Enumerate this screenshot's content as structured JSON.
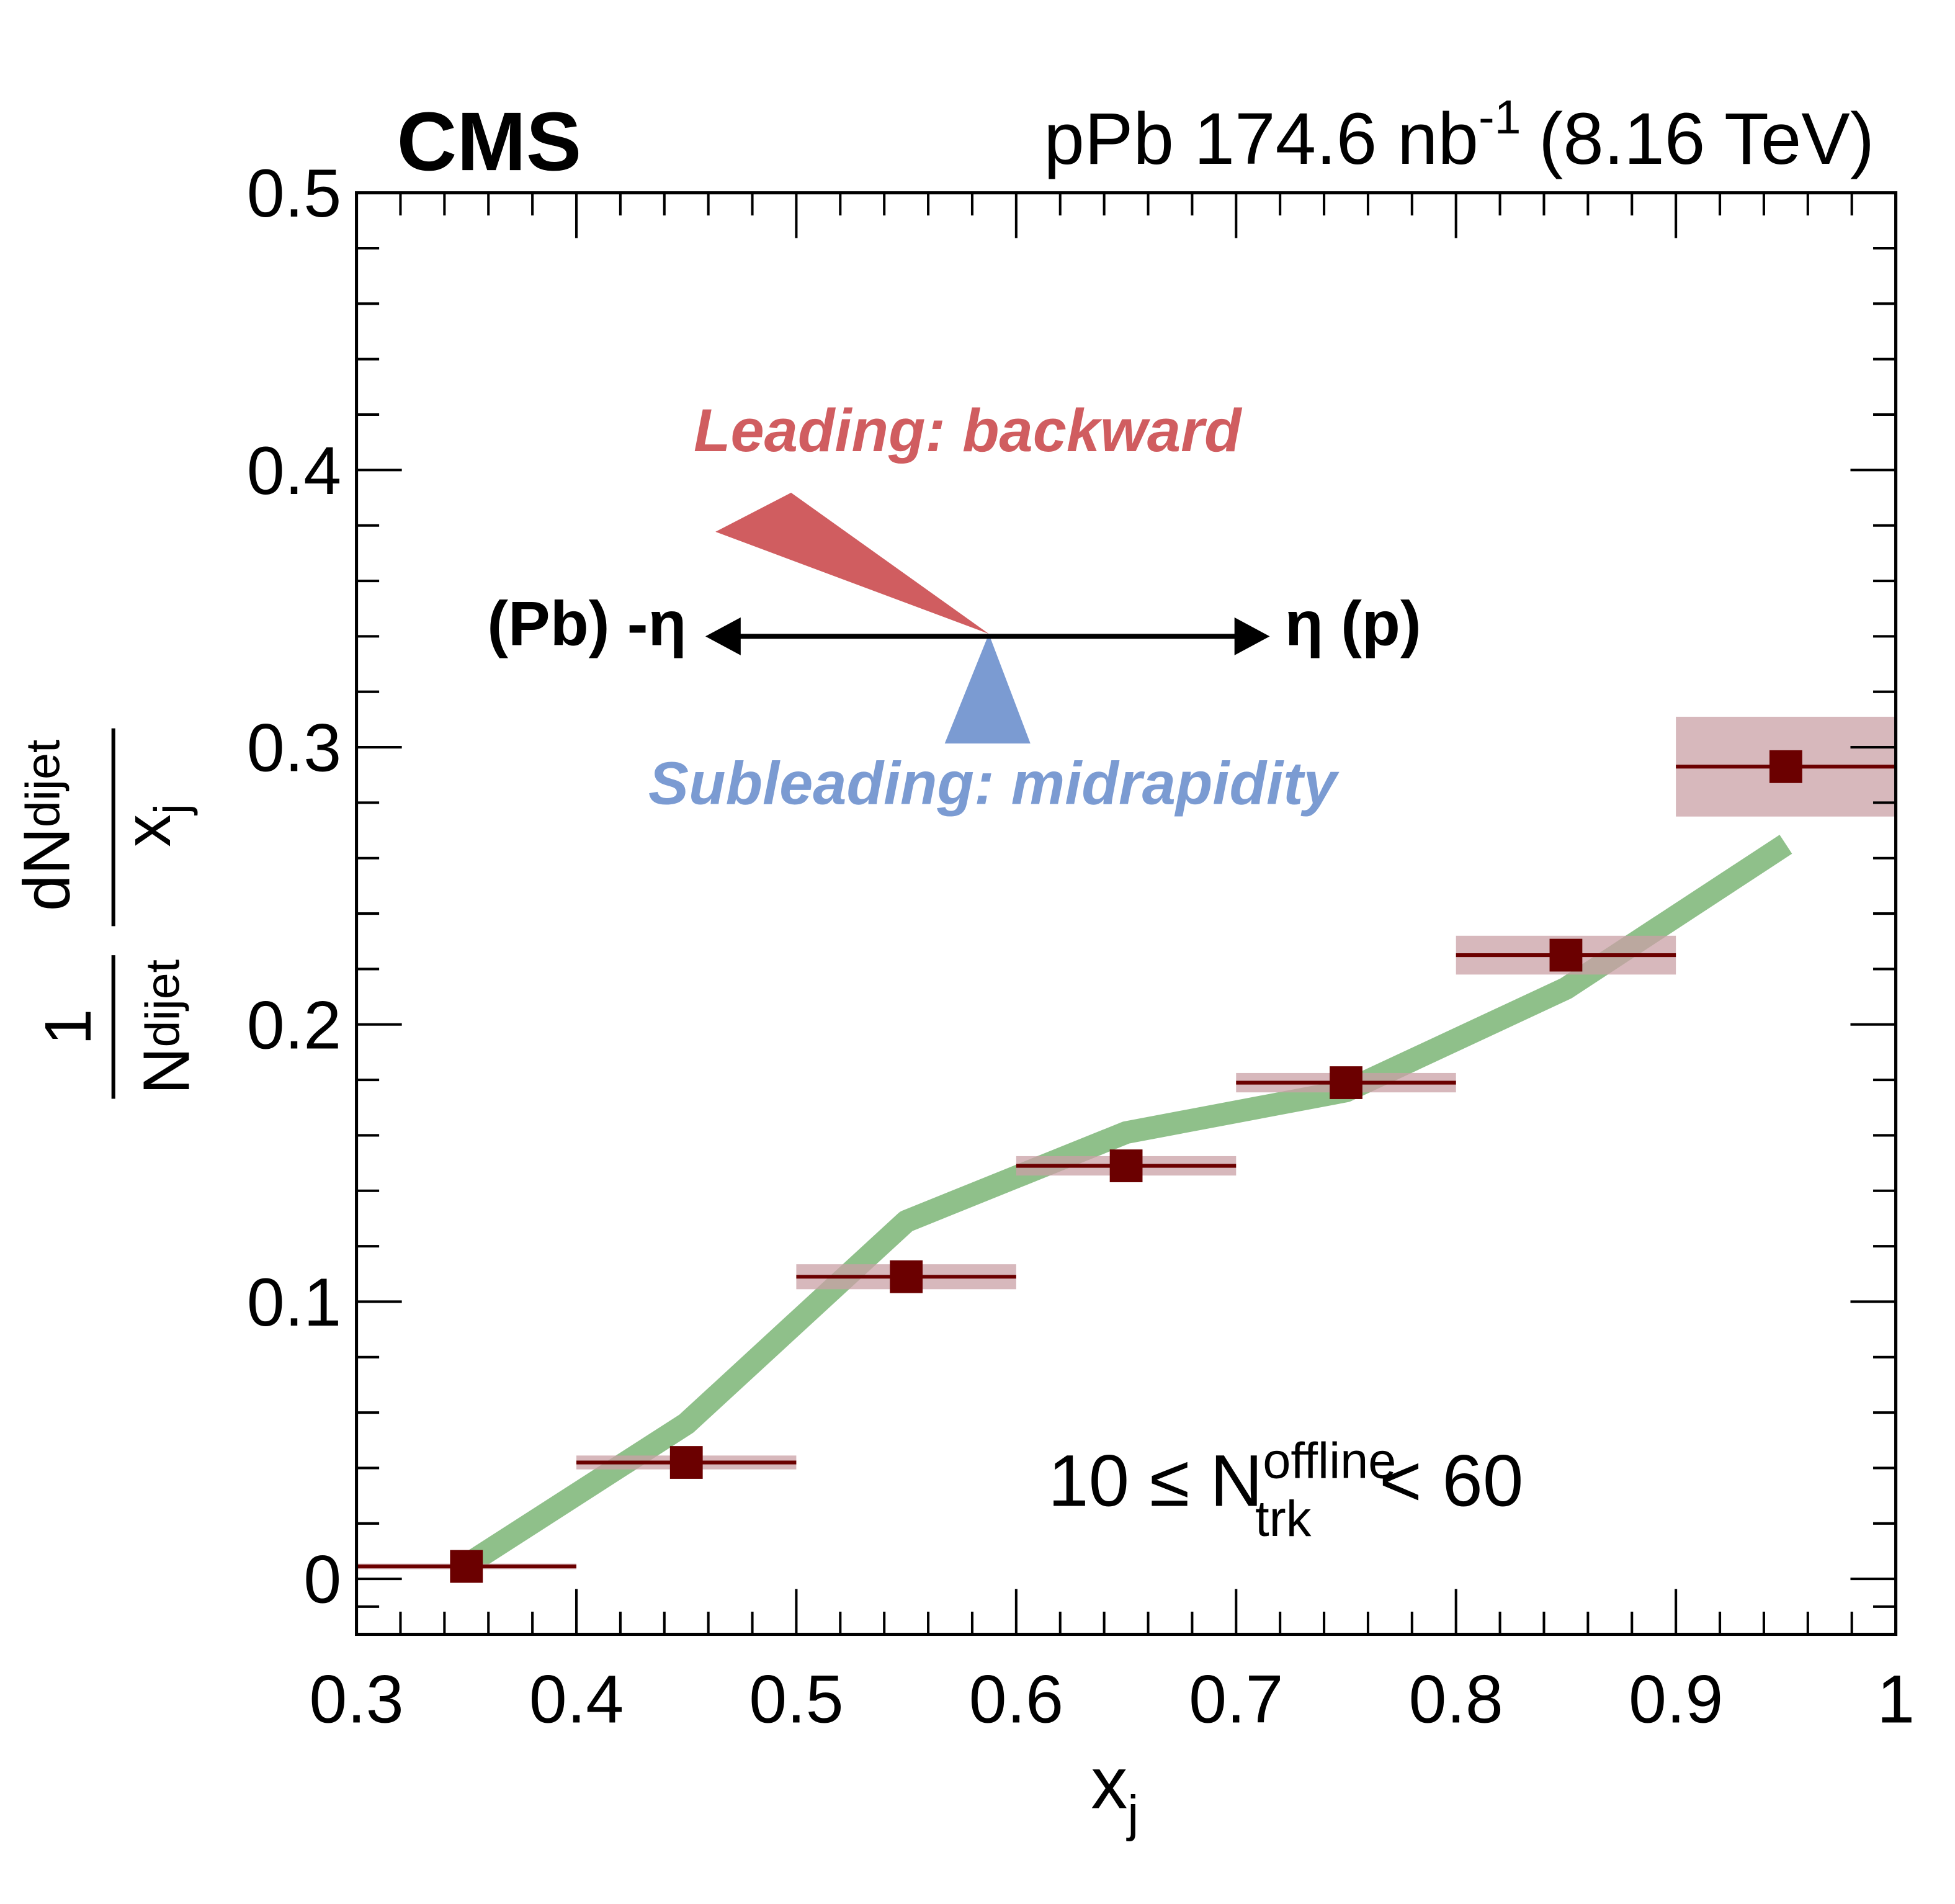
{
  "chart_data": {
    "type": "binned",
    "experiment": "CMS",
    "header": {
      "text": "pPb 174.6 nb",
      "sup": "-1",
      "energy": "(8.16 TeV)"
    },
    "xlabel": {
      "main": "x",
      "sub": "j"
    },
    "ylabel": {
      "num1": "1",
      "den1": "N",
      "den1_sub": "dijet",
      "num2": "dN",
      "num2_sub": "dijet",
      "den2": "x",
      "den2_sub": "j"
    },
    "selection": {
      "pre": "10 ≤ N",
      "sup": "offline",
      "sub": "trk",
      "post": "< 60"
    },
    "diagram": {
      "leading": "Leading: backward",
      "subleading": "Subleading: midrapidity",
      "left": "(Pb) -η",
      "right": "η (p)"
    },
    "bins": [
      0.3,
      0.4,
      0.5,
      0.6,
      0.7,
      0.8,
      0.9,
      1.0
    ],
    "data": {
      "values": [
        0.0045,
        0.042,
        0.109,
        0.149,
        0.179,
        0.225,
        0.293
      ],
      "syst": [
        0.001,
        0.0025,
        0.0045,
        0.0035,
        0.0035,
        0.007,
        0.018
      ],
      "color": "#6b0000",
      "syst_color": "#c9a0a6"
    },
    "model": {
      "x": [
        0.35,
        0.45,
        0.55,
        0.65,
        0.75,
        0.85,
        0.95
      ],
      "values": [
        0.005,
        0.056,
        0.129,
        0.161,
        0.176,
        0.213,
        0.265
      ],
      "color": "#8fc08a"
    },
    "xlim": [
      0.3,
      1.0
    ],
    "ylim": [
      -0.02,
      0.5
    ],
    "xticks": [
      0.3,
      0.4,
      0.5,
      0.6,
      0.7,
      0.8,
      0.9,
      1
    ],
    "yticks": [
      0,
      0.1,
      0.2,
      0.3,
      0.4,
      0.5
    ],
    "xminorticks": [
      0.32,
      0.34,
      0.36,
      0.38,
      0.42,
      0.44,
      0.46,
      0.48,
      0.52,
      0.54,
      0.56,
      0.58,
      0.62,
      0.64,
      0.66,
      0.68,
      0.72,
      0.74,
      0.76,
      0.78,
      0.82,
      0.84,
      0.86,
      0.88,
      0.92,
      0.94,
      0.96,
      0.98
    ],
    "yminorticks": [
      -0.01,
      0.02,
      0.04,
      0.06,
      0.08,
      0.12,
      0.14,
      0.16,
      0.18,
      0.22,
      0.24,
      0.26,
      0.28,
      0.32,
      0.34,
      0.36,
      0.38,
      0.42,
      0.44,
      0.46,
      0.48
    ]
  }
}
